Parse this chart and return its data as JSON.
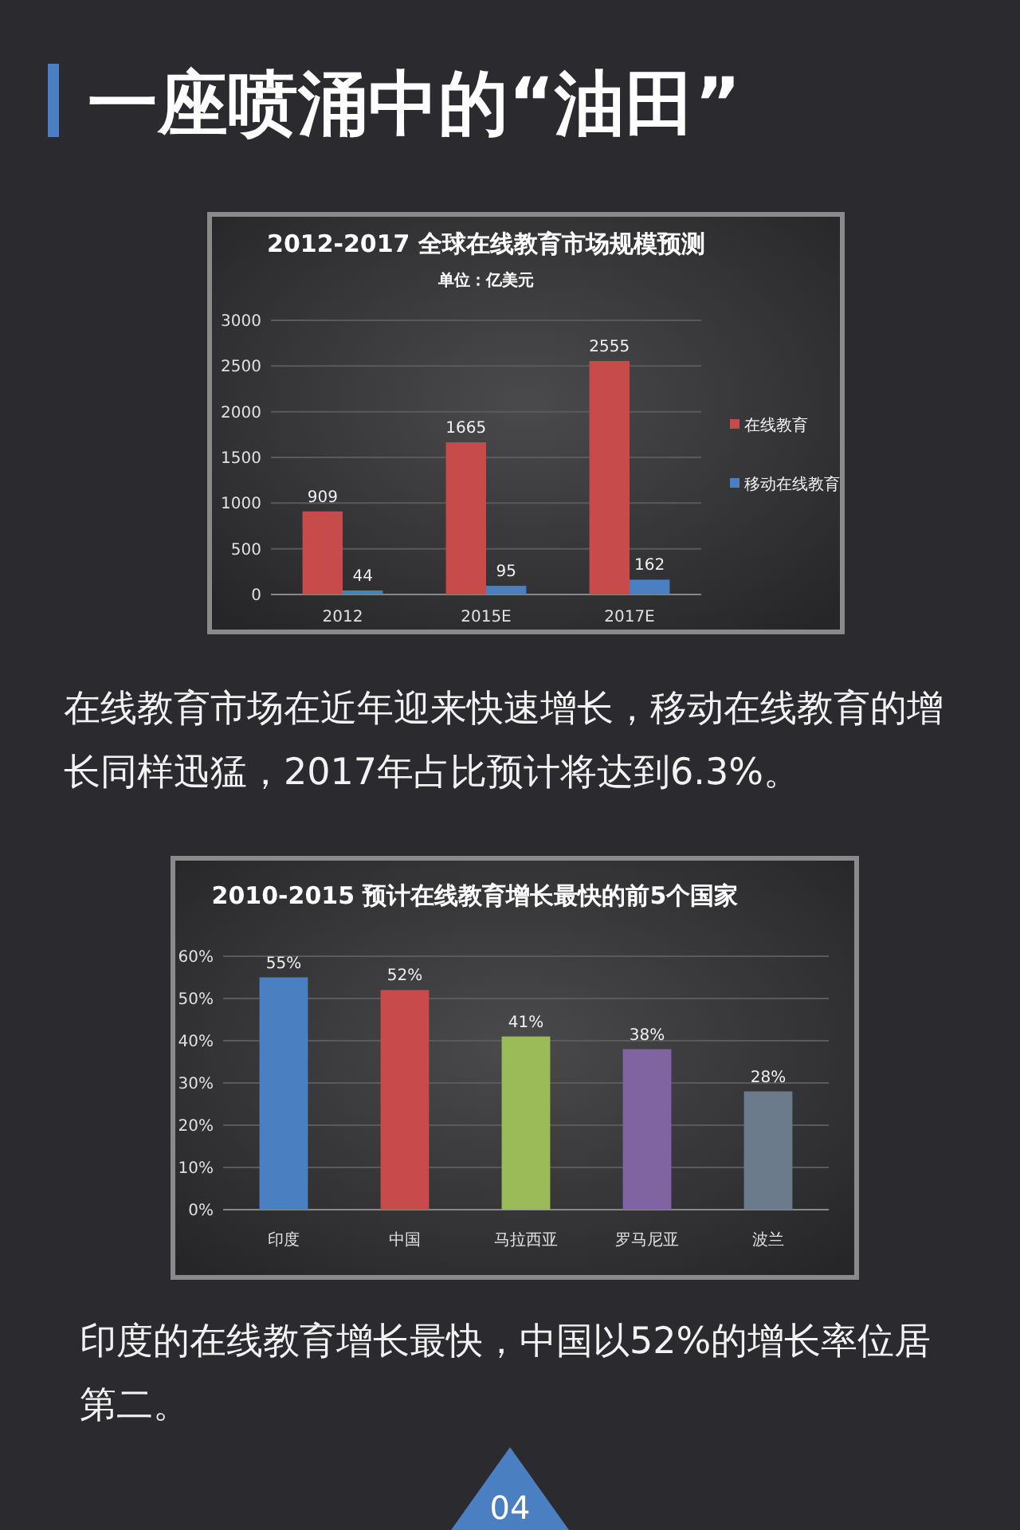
{
  "chart_data": [
    {
      "type": "other",
      "title": "一座喷涌中的“油田”"
    },
    {
      "type": "bar",
      "title": "2012-2017 全球在线教育市场规模预测",
      "subtitle": "单位：亿美元",
      "categories": [
        "2012",
        "2015E",
        "2017E"
      ],
      "series": [
        {
          "name": "在线教育",
          "color": "#c84b4b",
          "values": [
            909,
            1665,
            2555
          ]
        },
        {
          "name": "移动在线教育",
          "color": "#4a7fc1",
          "values": [
            44,
            95,
            162
          ]
        }
      ],
      "ylim": [
        0,
        3000
      ],
      "yticks": [
        0,
        500,
        1000,
        1500,
        2000,
        2500,
        3000
      ],
      "grid": "y",
      "legend": "right",
      "data_labels": true
    },
    {
      "type": "other",
      "annotations": [
        "在线教育市场在近年迎来快速增长，移动在线教育的增长同样迅猛，2017年占比预计将达到6.3%。"
      ]
    },
    {
      "type": "bar",
      "title": "2010-2015 预计在线教育增长最快的前5个国家",
      "categories": [
        "印度",
        "中国",
        "马拉西亚",
        "罗马尼亚",
        "波兰"
      ],
      "values": [
        55,
        52,
        41,
        38,
        28
      ],
      "colors": [
        "#4a7fc1",
        "#c94a4a",
        "#9bbb59",
        "#8064a2",
        "#6c7b8b"
      ],
      "value_labels": [
        "55%",
        "52%",
        "41%",
        "38%",
        "28%"
      ],
      "ylim": [
        0,
        60
      ],
      "yticks": [
        {
          "value": 0,
          "label": "0%"
        },
        {
          "value": 10,
          "label": "10%"
        },
        {
          "value": 20,
          "label": "20%"
        },
        {
          "value": 30,
          "label": "30%"
        },
        {
          "value": 40,
          "label": "40%"
        },
        {
          "value": 50,
          "label": "50%"
        },
        {
          "value": 60,
          "label": "60%"
        }
      ],
      "grid": "y"
    },
    {
      "type": "other",
      "annotations": [
        "印度的在线教育增长最快，中国以52%的增长率位居第二。",
        "04"
      ]
    }
  ]
}
